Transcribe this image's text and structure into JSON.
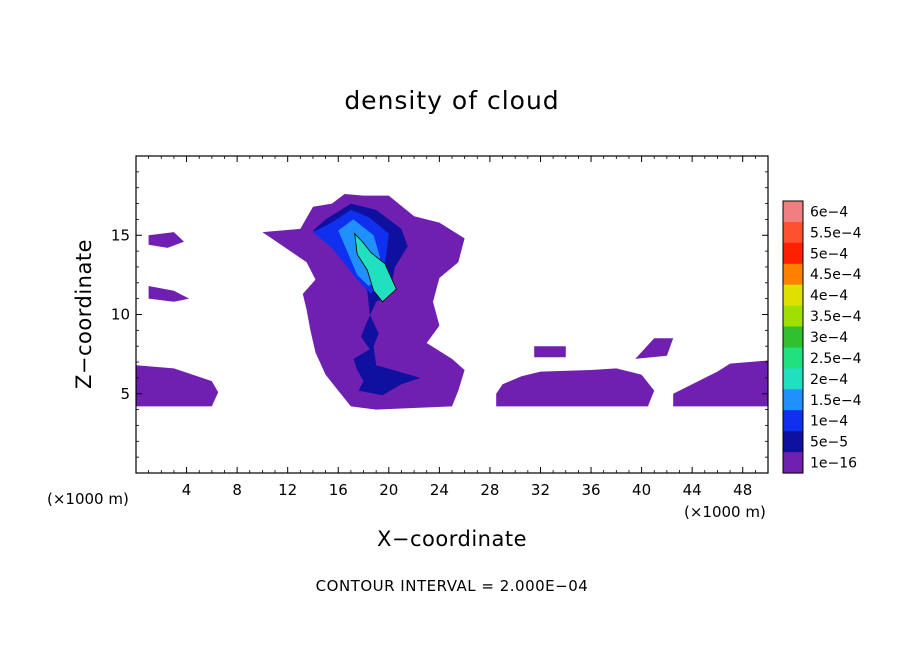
{
  "title": "density of cloud",
  "xlabel": "X−coordinate",
  "ylabel": "Z−coordinate",
  "x_unit_left": "(×1000 m)",
  "x_unit_right": "(×1000 m)",
  "footer": "CONTOUR INTERVAL = 2.000E−04",
  "chart_data": {
    "type": "heatmap",
    "title": "density of cloud",
    "xlabel": "X−coordinate",
    "ylabel": "Z−coordinate",
    "units": "×1000 m",
    "xlim": [
      0,
      50
    ],
    "ylim": [
      0,
      20
    ],
    "x_ticks": [
      4,
      8,
      12,
      16,
      20,
      24,
      28,
      32,
      36,
      40,
      44,
      48
    ],
    "y_ticks": [
      5,
      10,
      15
    ],
    "contour_interval": "2.000E−04",
    "colorbar": {
      "labels": [
        "6e−4",
        "5.5e−4",
        "5e−4",
        "4.5e−4",
        "4e−4",
        "3.5e−4",
        "3e−4",
        "2.5e−4",
        "2e−4",
        "1.5e−4",
        "1e−4",
        "5e−5",
        "1e−16"
      ],
      "colors": [
        "#f08080",
        "#ff5030",
        "#ff2000",
        "#ff8000",
        "#e0e000",
        "#a0e000",
        "#30c030",
        "#20e080",
        "#20e0c0",
        "#2090ff",
        "#1030f0",
        "#1010a0",
        "#7020b0"
      ]
    },
    "regions": [
      {
        "label": "1e−16",
        "color": "#7020b0",
        "polygon": [
          [
            0,
            6.8
          ],
          [
            3,
            6.6
          ],
          [
            6,
            5.8
          ],
          [
            6.5,
            5.1
          ],
          [
            6,
            4.2
          ],
          [
            0,
            4.2
          ]
        ]
      },
      {
        "label": "1e−16",
        "color": "#7020b0",
        "polygon": [
          [
            10,
            15.2
          ],
          [
            13,
            15.4
          ],
          [
            14,
            16.8
          ],
          [
            15.5,
            17
          ],
          [
            16.5,
            17.6
          ],
          [
            18,
            17.5
          ],
          [
            20,
            17.5
          ],
          [
            22,
            16.2
          ],
          [
            24,
            15.8
          ],
          [
            26,
            14.8
          ],
          [
            25.5,
            13.3
          ],
          [
            24,
            12.3
          ],
          [
            23.5,
            10.8
          ],
          [
            24,
            9.3
          ],
          [
            23,
            8.2
          ],
          [
            25,
            7.2
          ],
          [
            26,
            6.5
          ],
          [
            25.5,
            5.2
          ],
          [
            25,
            4.2
          ],
          [
            19,
            4
          ],
          [
            17,
            4.2
          ],
          [
            16,
            5.2
          ],
          [
            15,
            6.2
          ],
          [
            14.2,
            7.6
          ],
          [
            13.8,
            9
          ],
          [
            13.5,
            10.3
          ],
          [
            13.2,
            11.3
          ],
          [
            14.2,
            12.2
          ],
          [
            13.5,
            13.3
          ]
        ]
      },
      {
        "label": "1e−16",
        "color": "#7020b0",
        "polygon": [
          [
            28.5,
            4.2
          ],
          [
            40.5,
            4.2
          ],
          [
            41,
            5.2
          ],
          [
            40,
            6.2
          ],
          [
            38,
            6.6
          ],
          [
            36,
            6.5
          ],
          [
            32,
            6.4
          ],
          [
            30.5,
            6.1
          ],
          [
            29,
            5.6
          ],
          [
            28.5,
            5
          ]
        ]
      },
      {
        "label": "1e−16",
        "color": "#7020b0",
        "polygon": [
          [
            42.5,
            4.2
          ],
          [
            50,
            4.2
          ],
          [
            50,
            7.1
          ],
          [
            47,
            6.9
          ],
          [
            46,
            6.4
          ],
          [
            44,
            5.6
          ],
          [
            42.5,
            5
          ]
        ]
      },
      {
        "label": "1e−16",
        "color": "#7020b0",
        "polygon": [
          [
            31.5,
            8
          ],
          [
            34,
            8
          ],
          [
            34,
            7.3
          ],
          [
            31.5,
            7.3
          ]
        ]
      },
      {
        "label": "1e−16",
        "color": "#7020b0",
        "polygon": [
          [
            39.5,
            7.2
          ],
          [
            41,
            8.5
          ],
          [
            42.5,
            8.5
          ],
          [
            42,
            7.4
          ]
        ]
      },
      {
        "label": "1e−16",
        "color": "#7020b0",
        "polygon": [
          [
            1,
            11.8
          ],
          [
            3,
            11.5
          ],
          [
            4.2,
            11
          ],
          [
            3,
            10.8
          ],
          [
            1,
            11
          ]
        ]
      },
      {
        "label": "1e−16",
        "color": "#7020b0",
        "polygon": [
          [
            1,
            15
          ],
          [
            3,
            15.2
          ],
          [
            3.8,
            14.6
          ],
          [
            2.5,
            14.2
          ],
          [
            1,
            14.4
          ]
        ]
      },
      {
        "label": "5e−5",
        "color": "#1010a0",
        "polygon": [
          [
            14,
            15.3
          ],
          [
            15,
            16
          ],
          [
            17,
            17
          ],
          [
            19,
            16.6
          ],
          [
            21,
            15.4
          ],
          [
            21.5,
            14.3
          ],
          [
            20.5,
            13
          ],
          [
            20,
            11.2
          ],
          [
            19,
            10.8
          ],
          [
            18.2,
            9.4
          ],
          [
            17.8,
            8.6
          ],
          [
            18.5,
            7.8
          ],
          [
            17.2,
            7.2
          ],
          [
            17.5,
            6.5
          ],
          [
            18,
            5.8
          ],
          [
            17.6,
            5.2
          ],
          [
            19.5,
            4.9
          ],
          [
            21,
            5.6
          ],
          [
            22.5,
            6
          ],
          [
            20.8,
            6.4
          ],
          [
            19,
            6.8
          ],
          [
            18.8,
            8
          ],
          [
            19.2,
            8.8
          ],
          [
            18.5,
            10
          ],
          [
            18.3,
            11.5
          ],
          [
            17,
            12.8
          ],
          [
            16,
            14
          ]
        ]
      },
      {
        "label": "1e−4",
        "color": "#1030f0",
        "polygon": [
          [
            14,
            15.2
          ],
          [
            15.5,
            15.8
          ],
          [
            17,
            16.6
          ],
          [
            18.5,
            16.1
          ],
          [
            20,
            15.1
          ],
          [
            19.8,
            13.8
          ],
          [
            19.5,
            12.4
          ],
          [
            18.6,
            11.3
          ],
          [
            17.5,
            12.2
          ],
          [
            16.5,
            13.2
          ],
          [
            15.5,
            14.2
          ]
        ]
      },
      {
        "label": "1.5e−4",
        "color": "#2090ff",
        "polygon": [
          [
            16,
            15.3
          ],
          [
            17.2,
            16
          ],
          [
            18.8,
            15
          ],
          [
            19.3,
            13.6
          ],
          [
            19,
            12.2
          ],
          [
            18.4,
            11.8
          ],
          [
            17.5,
            12.5
          ],
          [
            16.8,
            13.8
          ]
        ]
      },
      {
        "label": "2e−4",
        "color": "#20e0c0",
        "polygon": [
          [
            17.3,
            15.1
          ],
          [
            17.9,
            14.6
          ],
          [
            18.6,
            13.9
          ],
          [
            19.7,
            13.2
          ],
          [
            20.6,
            11.6
          ],
          [
            19.5,
            10.8
          ],
          [
            18.8,
            11.5
          ],
          [
            18.3,
            12.8
          ],
          [
            17.5,
            13.8
          ]
        ]
      }
    ]
  }
}
